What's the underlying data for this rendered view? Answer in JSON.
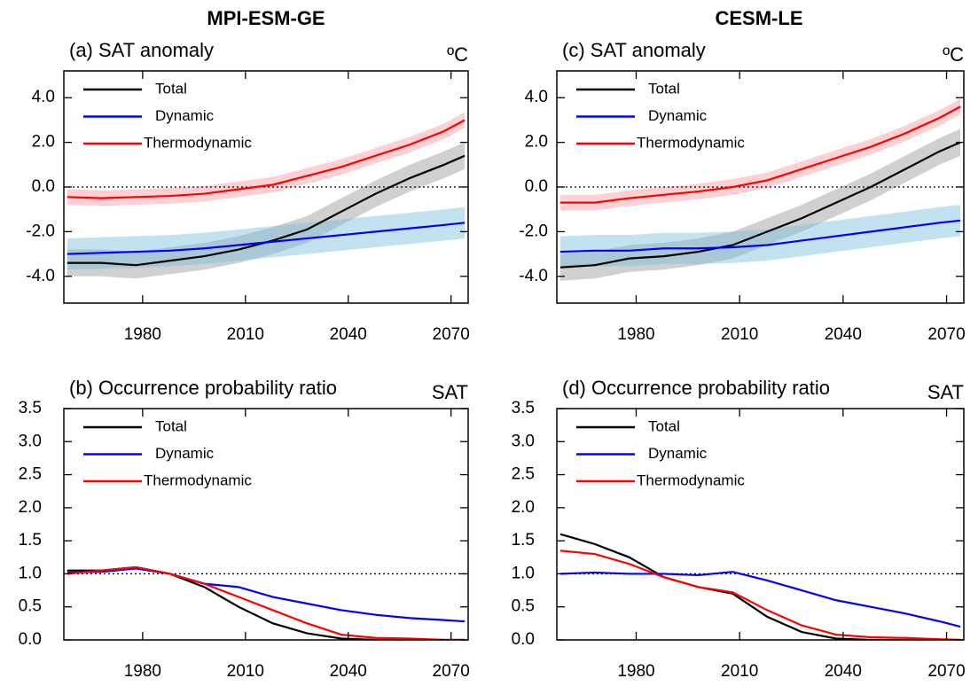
{
  "headers": [
    "MPI-ESM-GE",
    "CESM-LE"
  ],
  "chart_data": [
    {
      "type": "line",
      "title": "(a) SAT anomaly",
      "unit": "ºC",
      "x": [
        1958,
        1968,
        1978,
        1988,
        1998,
        2008,
        2018,
        2028,
        2038,
        2048,
        2058,
        2068,
        2074
      ],
      "xlim": [
        1957,
        2075
      ],
      "xticks": [
        1980,
        2010,
        2040,
        2070
      ],
      "ylim": [
        -5.2,
        5.2
      ],
      "yticks": [
        {
          "value": -4,
          "label": "-4.0"
        },
        {
          "value": -2,
          "label": "-2.0"
        },
        {
          "value": 0,
          "label": "0.0"
        },
        {
          "value": 2,
          "label": "2.0"
        },
        {
          "value": 4,
          "label": "4.0"
        }
      ],
      "hline": 0,
      "series": [
        {
          "name": "Total",
          "color": "#000000",
          "band_color": "rgba(150,150,150,0.45)",
          "values": [
            -3.4,
            -3.4,
            -3.5,
            -3.3,
            -3.1,
            -2.8,
            -2.4,
            -1.9,
            -1.1,
            -0.3,
            0.4,
            1.0,
            1.4
          ],
          "lower": [
            -4.0,
            -4.0,
            -4.1,
            -3.9,
            -3.7,
            -3.4,
            -3.0,
            -2.5,
            -1.7,
            -0.9,
            -0.2,
            0.4,
            0.8
          ],
          "upper": [
            -2.8,
            -2.8,
            -2.9,
            -2.7,
            -2.5,
            -2.2,
            -1.8,
            -1.3,
            -0.5,
            0.3,
            1.0,
            1.6,
            2.0
          ]
        },
        {
          "name": "Dynamic",
          "color": "#0000ff",
          "band_color": "rgba(120,190,220,0.45)",
          "values": [
            -3.0,
            -2.95,
            -2.9,
            -2.85,
            -2.75,
            -2.6,
            -2.45,
            -2.3,
            -2.15,
            -2.0,
            -1.85,
            -1.7,
            -1.6
          ],
          "lower": [
            -3.7,
            -3.65,
            -3.6,
            -3.55,
            -3.45,
            -3.3,
            -3.15,
            -3.0,
            -2.85,
            -2.7,
            -2.55,
            -2.4,
            -2.3
          ],
          "upper": [
            -2.3,
            -2.25,
            -2.2,
            -2.15,
            -2.05,
            -1.9,
            -1.75,
            -1.6,
            -1.45,
            -1.3,
            -1.15,
            -1.0,
            -0.9
          ]
        },
        {
          "name": "Thermodynamic",
          "color": "#ff0000",
          "band_color": "rgba(250,150,160,0.45)",
          "values": [
            -0.45,
            -0.5,
            -0.45,
            -0.4,
            -0.3,
            -0.1,
            0.1,
            0.5,
            0.9,
            1.4,
            1.9,
            2.5,
            3.0
          ],
          "lower": [
            -0.8,
            -0.85,
            -0.8,
            -0.75,
            -0.65,
            -0.45,
            -0.25,
            0.15,
            0.55,
            1.05,
            1.55,
            2.15,
            2.65
          ],
          "upper": [
            -0.1,
            -0.15,
            -0.1,
            -0.05,
            0.05,
            0.25,
            0.45,
            0.85,
            1.25,
            1.75,
            2.25,
            2.85,
            3.35
          ]
        }
      ]
    },
    {
      "type": "line",
      "title": "(b) Occurrence probability ratio",
      "unit": "SAT",
      "x": [
        1958,
        1968,
        1978,
        1988,
        1998,
        2008,
        2018,
        2028,
        2038,
        2048,
        2058,
        2068,
        2074
      ],
      "xlim": [
        1957,
        2075
      ],
      "xticks": [
        1980,
        2010,
        2040,
        2070
      ],
      "ylim": [
        0,
        3.5
      ],
      "yticks": [
        {
          "value": 0,
          "label": "0.0"
        },
        0.5,
        {
          "value": 1,
          "label": "1.0"
        },
        1.5,
        {
          "value": 2,
          "label": "2.0"
        },
        2.5,
        {
          "value": 3,
          "label": "3.0"
        },
        3.5
      ],
      "hline": 1,
      "series": [
        {
          "name": "Total",
          "color": "#000000",
          "values": [
            1.05,
            1.05,
            1.1,
            1.0,
            0.8,
            0.5,
            0.25,
            0.1,
            0.02,
            0,
            0,
            0,
            0
          ]
        },
        {
          "name": "Dynamic",
          "color": "#0000ff",
          "values": [
            1.02,
            1.03,
            1.08,
            1.0,
            0.85,
            0.8,
            0.65,
            0.55,
            0.45,
            0.38,
            0.33,
            0.3,
            0.28
          ]
        },
        {
          "name": "Thermodynamic",
          "color": "#ff0000",
          "values": [
            1.0,
            1.05,
            1.1,
            1.0,
            0.85,
            0.65,
            0.45,
            0.25,
            0.08,
            0.03,
            0.02,
            0,
            0
          ]
        }
      ]
    },
    {
      "type": "line",
      "title": "(c) SAT anomaly",
      "unit": "ºC",
      "x": [
        1958,
        1968,
        1978,
        1988,
        1998,
        2008,
        2018,
        2028,
        2038,
        2048,
        2058,
        2068,
        2074
      ],
      "xlim": [
        1957,
        2075
      ],
      "xticks": [
        1980,
        2010,
        2040,
        2070
      ],
      "ylim": [
        -5.2,
        5.2
      ],
      "yticks": [
        {
          "value": -4,
          "label": "-4.0"
        },
        {
          "value": -2,
          "label": "-2.0"
        },
        {
          "value": 0,
          "label": "0.0"
        },
        {
          "value": 2,
          "label": "2.0"
        },
        {
          "value": 4,
          "label": "4.0"
        }
      ],
      "hline": 0,
      "series": [
        {
          "name": "Total",
          "color": "#000000",
          "band_color": "rgba(150,150,150,0.45)",
          "values": [
            -3.6,
            -3.5,
            -3.2,
            -3.1,
            -2.9,
            -2.6,
            -2.0,
            -1.4,
            -0.7,
            0.0,
            0.8,
            1.6,
            2.0
          ],
          "lower": [
            -4.2,
            -4.1,
            -3.8,
            -3.7,
            -3.5,
            -3.2,
            -2.6,
            -2.0,
            -1.3,
            -0.6,
            0.2,
            1.0,
            1.4
          ],
          "upper": [
            -3.0,
            -2.9,
            -2.6,
            -2.5,
            -2.3,
            -2.0,
            -1.4,
            -0.8,
            -0.1,
            0.6,
            1.4,
            2.2,
            2.6
          ]
        },
        {
          "name": "Dynamic",
          "color": "#0000ff",
          "band_color": "rgba(120,190,220,0.45)",
          "values": [
            -2.9,
            -2.85,
            -2.85,
            -2.75,
            -2.75,
            -2.7,
            -2.6,
            -2.4,
            -2.2,
            -2.0,
            -1.8,
            -1.6,
            -1.5
          ],
          "lower": [
            -3.6,
            -3.55,
            -3.55,
            -3.45,
            -3.45,
            -3.4,
            -3.3,
            -3.1,
            -2.9,
            -2.7,
            -2.5,
            -2.3,
            -2.2
          ],
          "upper": [
            -2.2,
            -2.15,
            -2.15,
            -2.05,
            -2.05,
            -2.0,
            -1.9,
            -1.7,
            -1.5,
            -1.3,
            -1.1,
            -0.9,
            -0.8
          ]
        },
        {
          "name": "Thermodynamic",
          "color": "#ff0000",
          "band_color": "rgba(250,150,160,0.45)",
          "values": [
            -0.7,
            -0.7,
            -0.5,
            -0.35,
            -0.2,
            0.0,
            0.3,
            0.8,
            1.3,
            1.8,
            2.4,
            3.1,
            3.6
          ],
          "lower": [
            -1.05,
            -1.05,
            -0.85,
            -0.7,
            -0.55,
            -0.35,
            -0.05,
            0.45,
            0.95,
            1.45,
            2.05,
            2.75,
            3.25
          ],
          "upper": [
            -0.35,
            -0.35,
            -0.15,
            0.0,
            0.15,
            0.35,
            0.65,
            1.15,
            1.65,
            2.15,
            2.75,
            3.45,
            3.95
          ]
        }
      ]
    },
    {
      "type": "line",
      "title": "(d) Occurrence probability ratio",
      "unit": "SAT",
      "x": [
        1958,
        1968,
        1978,
        1988,
        1998,
        2008,
        2018,
        2028,
        2038,
        2048,
        2058,
        2068,
        2074
      ],
      "xlim": [
        1957,
        2075
      ],
      "xticks": [
        1980,
        2010,
        2040,
        2070
      ],
      "ylim": [
        0,
        3.5
      ],
      "yticks": [
        {
          "value": 0,
          "label": "0.0"
        },
        0.5,
        {
          "value": 1,
          "label": "1.0"
        },
        1.5,
        {
          "value": 2,
          "label": "2.0"
        },
        2.5,
        {
          "value": 3,
          "label": "3.0"
        },
        3.5
      ],
      "hline": 1,
      "series": [
        {
          "name": "Total",
          "color": "#000000",
          "values": [
            1.6,
            1.45,
            1.25,
            0.95,
            0.8,
            0.7,
            0.35,
            0.12,
            0.02,
            0,
            0,
            0,
            0
          ]
        },
        {
          "name": "Dynamic",
          "color": "#0000ff",
          "values": [
            1.0,
            1.02,
            1.0,
            1.0,
            0.98,
            1.03,
            0.9,
            0.75,
            0.6,
            0.5,
            0.4,
            0.28,
            0.2
          ]
        },
        {
          "name": "Thermodynamic",
          "color": "#ff0000",
          "values": [
            1.35,
            1.3,
            1.15,
            0.95,
            0.8,
            0.72,
            0.45,
            0.22,
            0.08,
            0.04,
            0.03,
            0.01,
            0
          ]
        }
      ]
    }
  ]
}
